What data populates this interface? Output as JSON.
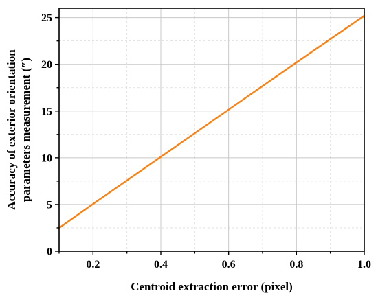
{
  "chart_data": {
    "type": "line",
    "title": "",
    "xlabel": "Centroid extraction error (pixel)",
    "ylabel_lines": [
      "Accuracy of exterior orientation",
      "parameters measurement (″)"
    ],
    "xlim": [
      0.1,
      1.0
    ],
    "ylim": [
      0,
      26
    ],
    "x_ticks": [
      0.2,
      0.4,
      0.6,
      0.8,
      1.0
    ],
    "x_tick_labels": [
      "0.2",
      "0.4",
      "0.6",
      "0.8",
      "1.0"
    ],
    "x_minor_ticks": [
      0.1,
      0.3,
      0.5,
      0.7,
      0.9
    ],
    "y_ticks": [
      0,
      5,
      10,
      15,
      20,
      25
    ],
    "y_tick_labels": [
      "0",
      "5",
      "10",
      "15",
      "20",
      "25"
    ],
    "y_minor_ticks": [
      2.5,
      7.5,
      12.5,
      17.5,
      22.5
    ],
    "grid": true,
    "series": [
      {
        "color": "#ff7f0e",
        "x": [
          0.1,
          0.2,
          0.4,
          0.6,
          0.8,
          1.0
        ],
        "values": [
          2.5,
          5.05,
          10.1,
          15.15,
          20.2,
          25.2
        ]
      }
    ]
  }
}
